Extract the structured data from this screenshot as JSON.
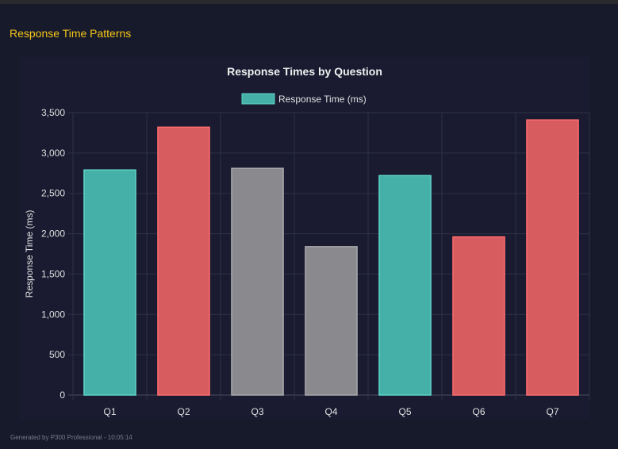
{
  "section_title": "Response Time Patterns",
  "footer": "Generated by P300 Professional - 10:05:14",
  "chart_data": {
    "type": "bar",
    "title": "Response Times by Question",
    "legend": {
      "label": "Response Time (ms)",
      "placement": "top",
      "color": "#45b0a8"
    },
    "ylabel": "Response Time (ms)",
    "xlabel": "",
    "ylim": [
      0,
      3500
    ],
    "yticks": [
      0,
      500,
      1000,
      1500,
      2000,
      2500,
      3000,
      3500
    ],
    "ytick_labels": [
      "0",
      "500",
      "1,000",
      "1,500",
      "2,000",
      "2,500",
      "3,000",
      "3,500"
    ],
    "categories": [
      "Q1",
      "Q2",
      "Q3",
      "Q4",
      "Q5",
      "Q6",
      "Q7"
    ],
    "values": [
      2790,
      3320,
      2810,
      1840,
      2720,
      1960,
      3410
    ],
    "colors": [
      "#45b0a8",
      "#d65c60",
      "#8a898e",
      "#8a898e",
      "#45b0a8",
      "#d65c60",
      "#d65c60"
    ],
    "grid": true
  }
}
